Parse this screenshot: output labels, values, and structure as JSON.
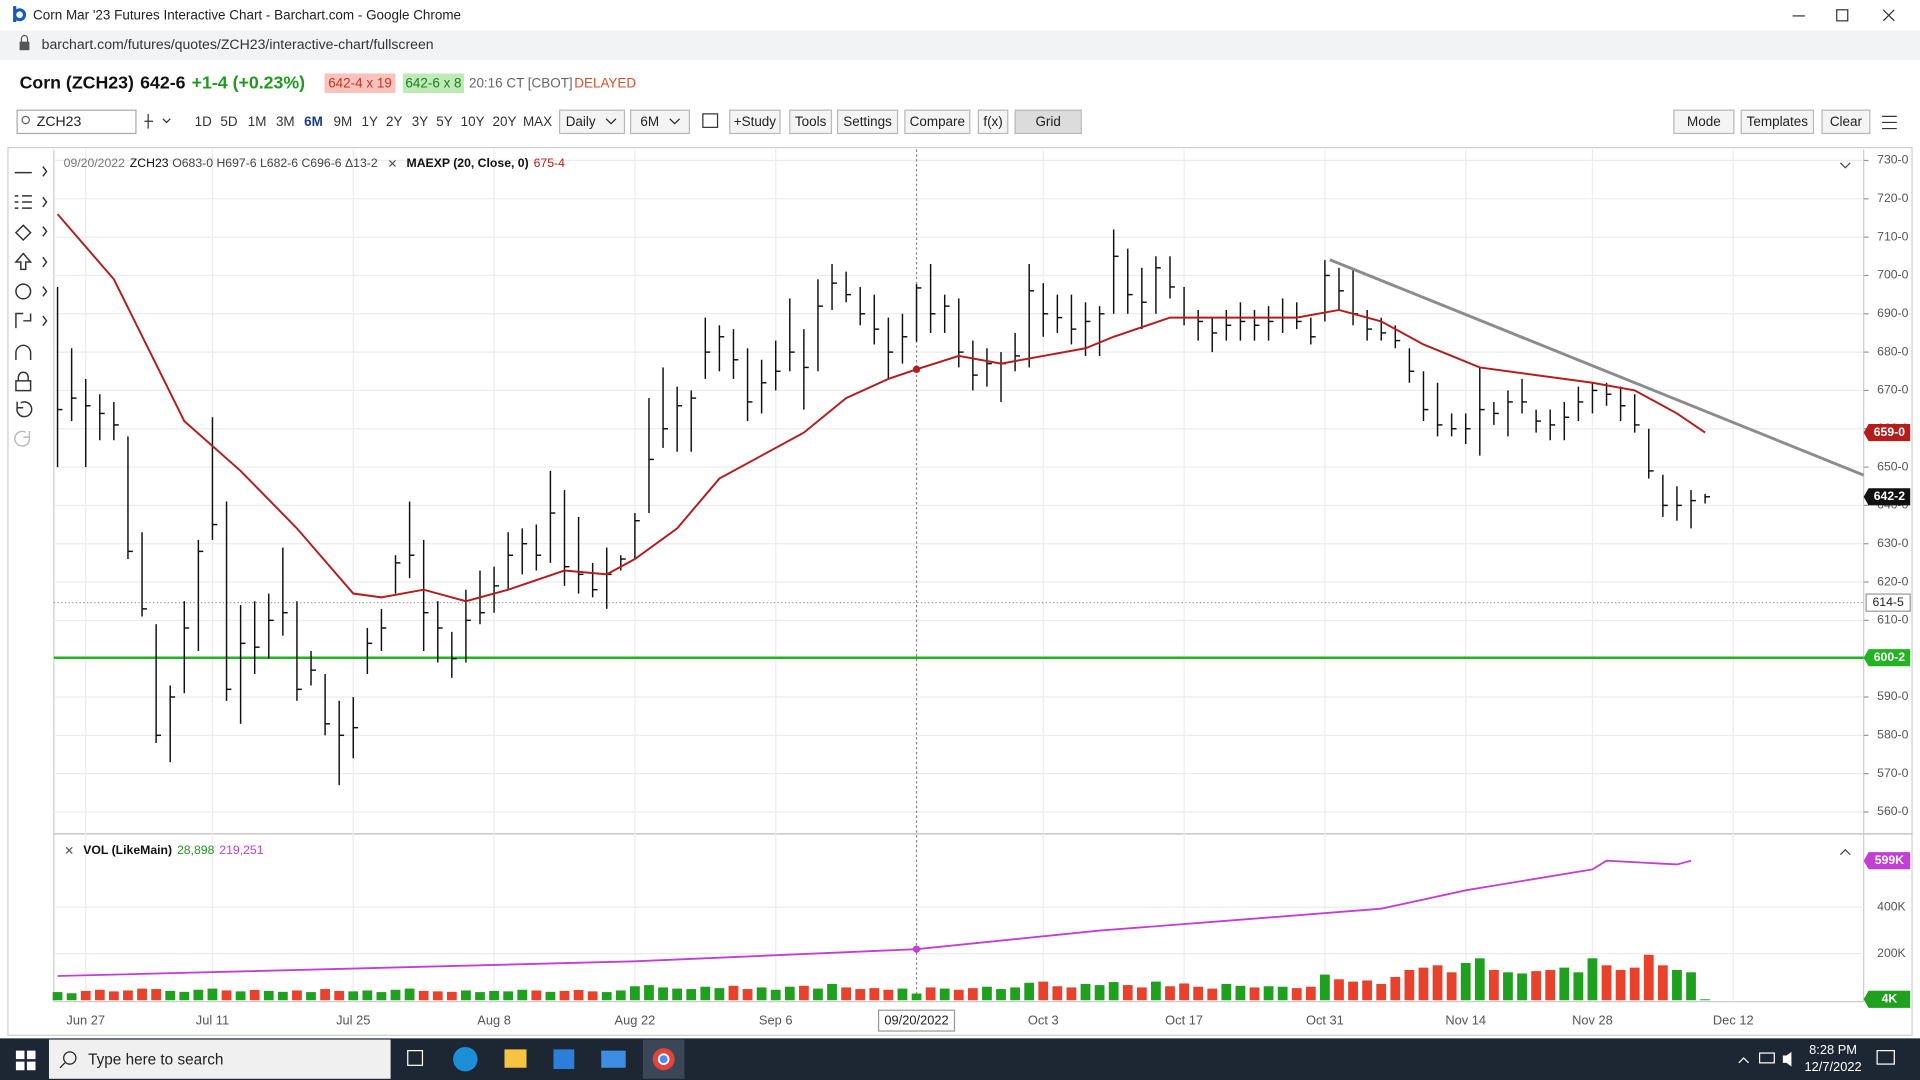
{
  "window": {
    "title": "Corn Mar '23 Futures Interactive Chart - Barchart.com - Google Chrome",
    "url": "barchart.com/futures/quotes/ZCH23/interactive-chart/fullscreen"
  },
  "quote": {
    "name": "Corn (ZCH23)",
    "last": "642-6",
    "change": "+1-4 (+0.23%)",
    "bid": "642-4 x 19",
    "ask": "642-6 x 8",
    "time": "20:16 CT [CBOT]",
    "status": "DELAYED"
  },
  "toolbar": {
    "symbol": "ZCH23",
    "periods": [
      "1D",
      "5D",
      "1M",
      "3M",
      "6M",
      "9M",
      "1Y",
      "2Y",
      "3Y",
      "5Y",
      "10Y",
      "20Y",
      "MAX"
    ],
    "active_period": "6M",
    "interval": "Daily",
    "range": "6M",
    "buttons": [
      "+Study",
      "Tools",
      "Settings",
      "Compare",
      "f(x)",
      "Grid"
    ],
    "right_buttons": [
      "Mode",
      "Templates",
      "Clear"
    ]
  },
  "chart_data": {
    "type": "ohlc",
    "symbol": "ZCH23",
    "info_date": "09/20/2022",
    "info_ohlc": "O683-0 H697-6 L682-6 C696-6 Δ13-2",
    "categories": [
      null,
      null,
      "Jun 27",
      null,
      null,
      null,
      null,
      null,
      null,
      null,
      null,
      "Jul 11",
      null,
      null,
      null,
      null,
      null,
      null,
      null,
      null,
      null,
      "Jul 25",
      null,
      null,
      null,
      null,
      null,
      null,
      null,
      null,
      null,
      "Aug 8",
      null,
      null,
      null,
      null,
      null,
      null,
      null,
      null,
      null,
      "Aug 22",
      null,
      null,
      null,
      null,
      null,
      null,
      null,
      null,
      null,
      "Sep 6",
      null,
      null,
      null,
      null,
      null,
      null,
      null,
      null,
      null,
      null,
      null,
      null,
      null,
      null,
      null,
      null,
      null,
      null,
      "Oct 3",
      null,
      null,
      null,
      null,
      null,
      null,
      null,
      null,
      null,
      "Oct 17",
      null,
      null,
      null,
      null,
      null,
      null,
      null,
      null,
      null,
      "Oct 31",
      null,
      null,
      null,
      null,
      null,
      null,
      null,
      null,
      null,
      "Nov 14",
      null,
      null,
      null,
      null,
      null,
      null,
      null,
      null,
      "Nov 28",
      null,
      null,
      null,
      null,
      null,
      null,
      null,
      null,
      null,
      "Dec 12"
    ],
    "high": [
      697,
      681,
      673,
      669,
      667,
      658,
      633,
      609,
      593,
      615,
      631,
      663,
      641,
      614,
      615,
      617,
      629,
      615,
      602,
      596,
      589,
      590,
      608,
      613,
      627,
      641,
      631,
      615,
      607,
      618,
      623,
      624,
      633,
      634,
      635,
      649,
      644,
      637,
      625,
      629,
      627,
      638,
      668,
      676,
      671,
      670,
      689,
      687,
      686,
      681,
      678,
      683,
      694,
      686,
      699,
      703,
      701,
      697,
      695,
      689,
      690,
      697.75,
      703,
      695,
      694,
      683,
      681,
      680,
      685,
      703,
      698,
      695,
      695,
      693,
      692,
      712,
      707,
      702,
      705,
      705,
      697,
      691,
      689,
      691,
      693,
      691,
      692,
      694,
      693,
      689,
      704,
      702,
      702,
      691,
      689,
      687,
      681,
      675,
      672,
      664,
      664,
      676,
      667,
      670,
      673,
      665,
      665,
      667,
      671,
      672,
      672,
      671,
      669,
      660,
      648,
      645,
      644,
      643,
      null,
      null
    ],
    "low": [
      650,
      662,
      650,
      657,
      657,
      626,
      611,
      578,
      573,
      591,
      602,
      631,
      589,
      583,
      596,
      600,
      606,
      589,
      593,
      580,
      567,
      574,
      596,
      602,
      617,
      621,
      602,
      599,
      595,
      599,
      609,
      612,
      618,
      622,
      623,
      625,
      619,
      617,
      616,
      613,
      623,
      626,
      638,
      655,
      654,
      654,
      673,
      675,
      673,
      662,
      664,
      670,
      675,
      665,
      675,
      691,
      693,
      687,
      682,
      673,
      677,
      682.75,
      685,
      685,
      676,
      670,
      671,
      667,
      675,
      676,
      684,
      685,
      682,
      679,
      679,
      690,
      690,
      686,
      690,
      694,
      687,
      683,
      680,
      683,
      683,
      683,
      683,
      685,
      686,
      682,
      688,
      691,
      687,
      683,
      683,
      681,
      672,
      662,
      658,
      658,
      656,
      653,
      661,
      658,
      664,
      659,
      657,
      657,
      662,
      664,
      666,
      662,
      659,
      647,
      637,
      636,
      634,
      640.5,
      null,
      null
    ],
    "close": [
      665,
      668,
      666,
      664,
      661,
      628,
      613,
      580,
      590,
      608,
      628,
      635,
      592,
      604,
      603,
      610,
      612,
      592,
      597,
      583,
      580,
      582,
      604,
      608,
      625,
      627,
      612,
      608,
      600,
      610,
      612,
      619,
      627,
      630,
      627,
      638,
      624,
      622,
      618,
      622,
      626,
      636,
      652,
      660,
      666,
      668,
      680,
      684,
      678,
      667,
      672,
      675,
      680,
      676,
      692,
      698,
      695,
      690,
      686,
      680,
      684,
      696.75,
      690,
      692,
      680,
      674,
      677,
      677,
      679,
      696,
      690,
      689,
      686,
      688,
      690,
      705,
      695,
      693,
      702,
      697,
      689,
      688,
      685,
      687,
      688,
      687,
      688,
      689,
      688,
      684,
      700,
      696,
      690,
      686,
      685,
      683,
      675,
      665,
      661,
      660,
      660,
      665,
      664,
      667,
      667,
      662,
      661,
      663,
      667,
      670,
      669,
      666,
      661,
      649,
      640,
      640,
      641.25,
      642.25,
      null,
      null
    ],
    "color": "#111111",
    "ylim": [
      554.6,
      732.9
    ],
    "yticks": [
      {
        "value": 560,
        "label": "560-0"
      },
      {
        "value": 570,
        "label": "570-0"
      },
      {
        "value": 580,
        "label": "580-0"
      },
      {
        "value": 590,
        "label": "590-0"
      },
      {
        "value": 600,
        "label": "600-0"
      },
      {
        "value": 610,
        "label": "610-0"
      },
      {
        "value": 620,
        "label": "620-0"
      },
      {
        "value": 630,
        "label": "630-0"
      },
      {
        "value": 640,
        "label": "640-0"
      },
      {
        "value": 650,
        "label": "650-0"
      },
      {
        "value": 660,
        "label": "660-0"
      },
      {
        "value": 670,
        "label": "670-0"
      },
      {
        "value": 680,
        "label": "680-0"
      },
      {
        "value": 690,
        "label": "690-0"
      },
      {
        "value": 700,
        "label": "700-0"
      },
      {
        "value": 710,
        "label": "710-0"
      },
      {
        "value": 720,
        "label": "720-0"
      },
      {
        "value": 730,
        "label": "730-0"
      }
    ],
    "grid": true,
    "studies": [
      {
        "name": "MAEXP (20, Close, 0)",
        "value_label": "675-4",
        "color": "#b51d1d",
        "x": [
          0,
          4,
          9,
          13,
          17,
          21,
          23,
          26,
          29,
          32,
          36,
          39,
          41,
          44,
          47,
          50,
          53,
          56,
          59,
          61,
          64,
          67,
          70,
          73,
          75,
          79,
          81,
          85,
          88,
          91,
          94,
          97,
          101,
          105,
          109,
          112,
          115,
          117
        ],
        "values": [
          716,
          699,
          662,
          649,
          634,
          617,
          616,
          618,
          615,
          618,
          623,
          622,
          626,
          634,
          647,
          653,
          659,
          668,
          673,
          675.5,
          679,
          677,
          679,
          681,
          684,
          689,
          689,
          689,
          689,
          691,
          688,
          682,
          676,
          674,
          672,
          670,
          664,
          659
        ]
      }
    ],
    "trendline": {
      "color": "#8c8c8c",
      "x": [
        90.35,
        128.26
      ],
      "values": [
        704.1,
        647.9
      ]
    },
    "hlines": [
      {
        "value": 600.25,
        "label": "600-2",
        "color": "#22b422"
      }
    ],
    "markers": [
      {
        "value": 659,
        "label": "659-0",
        "color": "#b51d1d"
      },
      {
        "value": 642.25,
        "label": "642-2",
        "color": "#111111"
      }
    ],
    "crosshair": {
      "x": 61,
      "y": 614.625,
      "y_label": "614-5"
    },
    "volume": {
      "name": "VOL (LikeMain)",
      "value_label": "28,898",
      "up_color": "#1fa01f",
      "down_color": "#e8412c",
      "values": [
        35000,
        30000,
        40000,
        45000,
        38000,
        42000,
        50000,
        48000,
        40000,
        36000,
        45000,
        50000,
        42000,
        38000,
        44000,
        40000,
        36000,
        42000,
        35000,
        48000,
        40000,
        38000,
        42000,
        35000,
        45000,
        50000,
        40000,
        38000,
        36000,
        42000,
        35000,
        40000,
        38000,
        45000,
        42000,
        36000,
        40000,
        44000,
        38000,
        35000,
        42000,
        60000,
        65000,
        55000,
        50000,
        48000,
        58000,
        52000,
        62000,
        48000,
        55000,
        45000,
        58000,
        62000,
        50000,
        70000,
        55000,
        48000,
        52000,
        45000,
        50000,
        28898,
        55000,
        50000,
        45000,
        52000,
        58000,
        48000,
        55000,
        75000,
        80000,
        60000,
        55000,
        70000,
        65000,
        78000,
        65000,
        55000,
        80000,
        60000,
        72000,
        58000,
        50000,
        70000,
        62000,
        55000,
        60000,
        58000,
        52000,
        58000,
        110000,
        90000,
        80000,
        85000,
        70000,
        100000,
        130000,
        140000,
        150000,
        120000,
        160000,
        180000,
        130000,
        120000,
        115000,
        125000,
        130000,
        140000,
        120000,
        180000,
        150000,
        130000,
        140000,
        195000,
        150000,
        130000,
        120000,
        4000,
        null,
        null
      ],
      "y2lim": [
        -6000,
        667000
      ],
      "y2ticks": [
        {
          "value": 200000,
          "label": "200K"
        },
        {
          "value": 400000,
          "label": "400K"
        }
      ],
      "line": {
        "value_label": "219,251",
        "color": "#c23fd6",
        "x": [
          0,
          21,
          41,
          61,
          74,
          83,
          94,
          100,
          109,
          110,
          115,
          116
        ],
        "values": [
          104000,
          136000,
          167000,
          219251,
          299000,
          341000,
          393000,
          472000,
          562000,
          599000,
          583000,
          599000
        ]
      },
      "markers": [
        {
          "value": 599000,
          "label": "599K",
          "color": "#c23fd6"
        },
        {
          "value": 4000,
          "label": "4K",
          "color": "#1fa01f"
        }
      ]
    }
  },
  "taskbar": {
    "search": "Type here to search",
    "time": "8:28 PM",
    "date": "12/7/2022"
  }
}
